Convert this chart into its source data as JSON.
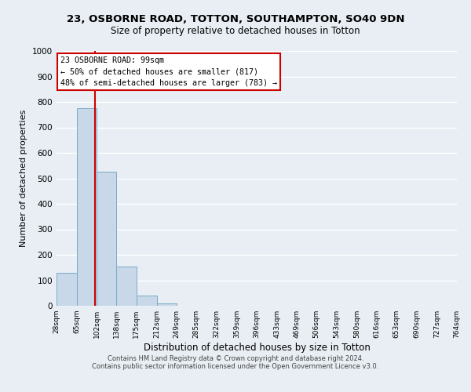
{
  "title": "23, OSBORNE ROAD, TOTTON, SOUTHAMPTON, SO40 9DN",
  "subtitle": "Size of property relative to detached houses in Totton",
  "xlabel": "Distribution of detached houses by size in Totton",
  "ylabel": "Number of detached properties",
  "bar_color": "#c8d8e8",
  "bar_edge_color": "#7aaac8",
  "background_color": "#e8eef4",
  "grid_color": "#ffffff",
  "annotation_box_color": "#ffffff",
  "annotation_box_edge_color": "#cc0000",
  "vline_color": "#cc0000",
  "bin_edges": [
    28,
    65,
    102,
    138,
    175,
    212,
    249,
    285,
    322,
    359,
    396,
    433,
    469,
    506,
    543,
    580,
    616,
    653,
    690,
    727,
    764
  ],
  "bar_heights": [
    130,
    775,
    525,
    155,
    40,
    10,
    0,
    0,
    0,
    0,
    0,
    0,
    0,
    0,
    0,
    0,
    0,
    0,
    0,
    0
  ],
  "property_size": 99,
  "annotation_title": "23 OSBORNE ROAD: 99sqm",
  "annotation_line1": "← 50% of detached houses are smaller (817)",
  "annotation_line2": "48% of semi-detached houses are larger (783) →",
  "ylim": [
    0,
    1000
  ],
  "yticks": [
    0,
    100,
    200,
    300,
    400,
    500,
    600,
    700,
    800,
    900,
    1000
  ],
  "footer_line1": "Contains HM Land Registry data © Crown copyright and database right 2024.",
  "footer_line2": "Contains public sector information licensed under the Open Government Licence v3.0."
}
